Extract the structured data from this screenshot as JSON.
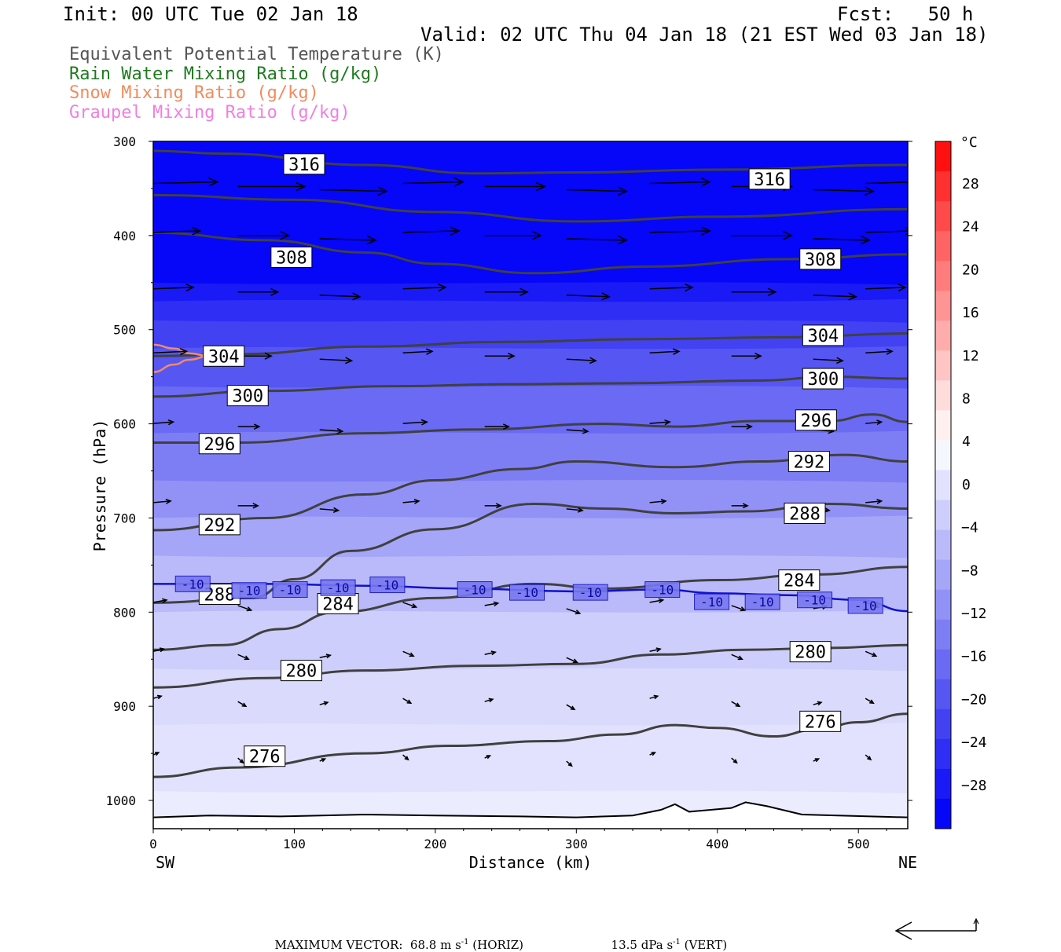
{
  "header": {
    "init": "Init: 00 UTC Tue 02 Jan 18",
    "fcst": "Fcst:   50 h",
    "valid": "Valid: 02 UTC Thu 04 Jan 18 (21 EST Wed 03 Jan 18)"
  },
  "legend": [
    {
      "label": "Equivalent Potential Temperature (K)",
      "color": "#555555"
    },
    {
      "label": "Rain Water Mixing Ratio (g/kg)",
      "color": "#207a20"
    },
    {
      "label": "Snow Mixing Ratio (g/kg)",
      "color": "#f08c60"
    },
    {
      "label": "Graupel Mixing Ratio (g/kg)",
      "color": "#f080e0"
    }
  ],
  "chart_data": {
    "type": "cross-section",
    "xlabel": "Distance (km)",
    "ylabel": "Pressure (hPa)",
    "xlim": [
      0,
      535
    ],
    "ylim": [
      1030,
      300
    ],
    "xticks": [
      0,
      100,
      200,
      300,
      400,
      500
    ],
    "yticks": [
      300,
      400,
      500,
      600,
      700,
      800,
      900,
      1000
    ],
    "left_end_label": "SW",
    "right_end_label": "NE",
    "colorbar": {
      "unit": "°C",
      "labels": [
        28,
        24,
        20,
        16,
        12,
        8,
        4,
        0,
        -4,
        -8,
        -12,
        -16,
        -20,
        -24,
        -28
      ],
      "colors": [
        "#ff1010",
        "#ff3030",
        "#ff4a4a",
        "#ff6464",
        "#ff7c7c",
        "#ff9494",
        "#ffacac",
        "#ffc4c4",
        "#ffdcdc",
        "#fff0f0",
        "#f6f6ff",
        "#e2e2fe",
        "#cecefc",
        "#babafa",
        "#a6a6f8",
        "#9292f6",
        "#7e7ef4",
        "#6a6af4",
        "#5656f2",
        "#4242f2",
        "#2e2ef4",
        "#1a1af6",
        "#0606f8"
      ]
    },
    "theta_e_contours": [
      {
        "value": 316,
        "points": [
          [
            0,
            310
          ],
          [
            50,
            313
          ],
          [
            150,
            325
          ],
          [
            230,
            334
          ],
          [
            300,
            333
          ],
          [
            400,
            330
          ],
          [
            535,
            325
          ]
        ],
        "labels": [
          [
            107,
            324
          ],
          [
            437,
            340
          ]
        ]
      },
      {
        "value": 312,
        "points": [
          [
            0,
            357
          ],
          [
            100,
            362
          ],
          [
            200,
            375
          ],
          [
            300,
            385
          ],
          [
            400,
            380
          ],
          [
            535,
            372
          ]
        ],
        "labels": []
      },
      {
        "value": 308,
        "points": [
          [
            0,
            397
          ],
          [
            80,
            405
          ],
          [
            150,
            418
          ],
          [
            200,
            430
          ],
          [
            270,
            440
          ],
          [
            350,
            433
          ],
          [
            450,
            425
          ],
          [
            535,
            420
          ]
        ],
        "labels": [
          [
            98,
            423
          ],
          [
            473,
            425
          ]
        ]
      },
      {
        "value": 304,
        "points": [
          [
            0,
            528
          ],
          [
            60,
            526
          ],
          [
            150,
            518
          ],
          [
            250,
            513
          ],
          [
            350,
            510
          ],
          [
            450,
            508
          ],
          [
            535,
            504
          ]
        ],
        "labels": [
          [
            50,
            528
          ],
          [
            475,
            506
          ]
        ]
      },
      {
        "value": 300,
        "points": [
          [
            0,
            571
          ],
          [
            80,
            565
          ],
          [
            170,
            560
          ],
          [
            250,
            558
          ],
          [
            330,
            557
          ],
          [
            430,
            554
          ],
          [
            480,
            550
          ],
          [
            535,
            552
          ]
        ],
        "labels": [
          [
            67,
            570
          ],
          [
            475,
            552
          ]
        ]
      },
      {
        "value": 296,
        "points": [
          [
            0,
            620
          ],
          [
            60,
            620
          ],
          [
            150,
            610
          ],
          [
            230,
            606
          ],
          [
            320,
            600
          ],
          [
            370,
            603
          ],
          [
            430,
            597
          ],
          [
            480,
            597
          ],
          [
            510,
            590
          ],
          [
            535,
            598
          ]
        ],
        "labels": [
          [
            47,
            621
          ],
          [
            470,
            596
          ]
        ]
      },
      {
        "value": 292,
        "points": [
          [
            0,
            713
          ],
          [
            80,
            700
          ],
          [
            150,
            675
          ],
          [
            200,
            660
          ],
          [
            260,
            648
          ],
          [
            300,
            640
          ],
          [
            370,
            646
          ],
          [
            430,
            640
          ],
          [
            490,
            633
          ],
          [
            535,
            640
          ]
        ],
        "labels": [
          [
            47,
            707
          ],
          [
            465,
            640
          ]
        ]
      },
      {
        "value": 288,
        "points": [
          [
            0,
            790
          ],
          [
            70,
            785
          ],
          [
            100,
            765
          ],
          [
            140,
            735
          ],
          [
            200,
            712
          ],
          [
            270,
            685
          ],
          [
            320,
            690
          ],
          [
            370,
            695
          ],
          [
            420,
            693
          ],
          [
            480,
            685
          ],
          [
            535,
            690
          ]
        ],
        "labels": [
          [
            47,
            781
          ],
          [
            462,
            695
          ]
        ]
      },
      {
        "value": 284,
        "points": [
          [
            0,
            840
          ],
          [
            50,
            835
          ],
          [
            90,
            818
          ],
          [
            130,
            800
          ],
          [
            200,
            785
          ],
          [
            270,
            770
          ],
          [
            320,
            775
          ],
          [
            400,
            766
          ],
          [
            470,
            760
          ],
          [
            535,
            752
          ]
        ],
        "labels": [
          [
            131,
            791
          ],
          [
            458,
            766
          ]
        ]
      },
      {
        "value": 280,
        "points": [
          [
            0,
            880
          ],
          [
            80,
            870
          ],
          [
            150,
            862
          ],
          [
            230,
            857
          ],
          [
            300,
            855
          ],
          [
            360,
            845
          ],
          [
            420,
            840
          ],
          [
            480,
            838
          ],
          [
            535,
            835
          ]
        ],
        "labels": [
          [
            105,
            862
          ],
          [
            466,
            842
          ]
        ]
      },
      {
        "value": 276,
        "points": [
          [
            0,
            975
          ],
          [
            60,
            965
          ],
          [
            150,
            950
          ],
          [
            210,
            942
          ],
          [
            280,
            937
          ],
          [
            330,
            930
          ],
          [
            370,
            920
          ],
          [
            400,
            923
          ],
          [
            440,
            932
          ],
          [
            470,
            925
          ],
          [
            500,
            917
          ],
          [
            535,
            908
          ]
        ],
        "labels": [
          [
            79,
            953
          ],
          [
            473,
            916
          ]
        ]
      }
    ],
    "temperature_contour_minus10": {
      "value": -10,
      "points": [
        [
          0,
          770
        ],
        [
          80,
          770
        ],
        [
          150,
          772
        ],
        [
          220,
          775
        ],
        [
          300,
          778
        ],
        [
          360,
          776
        ],
        [
          400,
          780
        ],
        [
          450,
          782
        ],
        [
          500,
          787
        ],
        [
          535,
          799
        ]
      ],
      "labels": [
        [
          28,
          770
        ],
        [
          68,
          777
        ],
        [
          97,
          776
        ],
        [
          131,
          774
        ],
        [
          166,
          771
        ],
        [
          228,
          776
        ],
        [
          265,
          779
        ],
        [
          310,
          779
        ],
        [
          361,
          776
        ],
        [
          396,
          789
        ],
        [
          432,
          789
        ],
        [
          469,
          787
        ],
        [
          505,
          793
        ]
      ]
    },
    "snow_mixing_ratio_contour": [
      [
        0,
        516
      ],
      [
        15,
        520
      ],
      [
        25,
        525
      ],
      [
        40,
        528
      ],
      [
        25,
        532
      ],
      [
        15,
        537
      ],
      [
        0,
        545
      ]
    ],
    "terrain_hpa": [
      [
        0,
        1018
      ],
      [
        40,
        1016
      ],
      [
        90,
        1017
      ],
      [
        150,
        1015
      ],
      [
        200,
        1016
      ],
      [
        260,
        1017
      ],
      [
        300,
        1018
      ],
      [
        340,
        1016
      ],
      [
        360,
        1010
      ],
      [
        370,
        1004
      ],
      [
        380,
        1012
      ],
      [
        410,
        1008
      ],
      [
        420,
        1002
      ],
      [
        435,
        1006
      ],
      [
        460,
        1015
      ],
      [
        535,
        1018
      ]
    ],
    "vectors": [
      {
        "p": 348,
        "x0": 0,
        "dx": [
          50,
          57,
          55,
          57,
          50,
          50,
          50,
          50,
          50,
          50
        ],
        "xs": [
          0,
          60,
          118,
          177,
          235,
          293,
          352,
          410,
          468,
          505
        ],
        "len": [
          48,
          50,
          50,
          45,
          45,
          45,
          45,
          45,
          45,
          40
        ]
      },
      {
        "p": 400,
        "xs": [
          0,
          60,
          118,
          177,
          235,
          293,
          352,
          410,
          468,
          505
        ],
        "len": [
          35,
          38,
          42,
          42,
          42,
          45,
          45,
          45,
          42,
          36
        ]
      },
      {
        "p": 460,
        "xs": [
          0,
          60,
          118,
          177,
          235,
          293,
          352,
          410,
          468,
          505
        ],
        "len": [
          30,
          30,
          30,
          32,
          32,
          32,
          32,
          33,
          32,
          30
        ]
      },
      {
        "p": 528,
        "xs": [
          0,
          60,
          118,
          177,
          235,
          293,
          352,
          410,
          468,
          505
        ],
        "len": [
          25,
          25,
          24,
          22,
          22,
          22,
          22,
          22,
          22,
          20
        ]
      },
      {
        "p": 603,
        "xs": [
          0,
          60,
          118,
          177,
          235,
          293,
          352,
          410,
          468,
          505
        ],
        "len": [
          15,
          16,
          17,
          18,
          18,
          16,
          15,
          15,
          15,
          12
        ]
      },
      {
        "p": 687,
        "xs": [
          0,
          60,
          118,
          177,
          235,
          293,
          352,
          410,
          468,
          505
        ],
        "len": [
          13,
          15,
          14,
          12,
          12,
          12,
          12,
          12,
          12,
          12
        ]
      },
      {
        "p": 793,
        "xs": [
          0,
          60,
          118,
          177,
          235,
          293,
          352,
          410,
          468,
          505
        ],
        "len": [
          10,
          10,
          10,
          10,
          10,
          10,
          10,
          10,
          10,
          10
        ]
      },
      {
        "p": 845,
        "xs": [
          0,
          60,
          118,
          177,
          235,
          293,
          352,
          410,
          468,
          505
        ],
        "len": [
          8,
          8,
          8,
          8,
          8,
          8,
          8,
          8,
          8,
          8
        ]
      },
      {
        "p": 895,
        "xs": [
          0,
          60,
          118,
          177,
          235,
          293,
          352,
          410,
          468,
          505
        ],
        "len": [
          6,
          6,
          6,
          6,
          6,
          6,
          6,
          6,
          6,
          6
        ]
      },
      {
        "p": 955,
        "xs": [
          0,
          60,
          118,
          177,
          235,
          293,
          352,
          410,
          468,
          505
        ],
        "len": [
          4,
          4,
          4,
          4,
          4,
          4,
          4,
          4,
          4,
          4
        ]
      }
    ]
  },
  "footer": {
    "max_vector": "MAXIMUM VECTOR:  68.8 m s",
    "exp": "-1",
    "horiz": " (HORIZ)",
    "vert_val": "13.5 dPa s",
    "vert_exp": "-1",
    "vert": " (VERT)"
  }
}
